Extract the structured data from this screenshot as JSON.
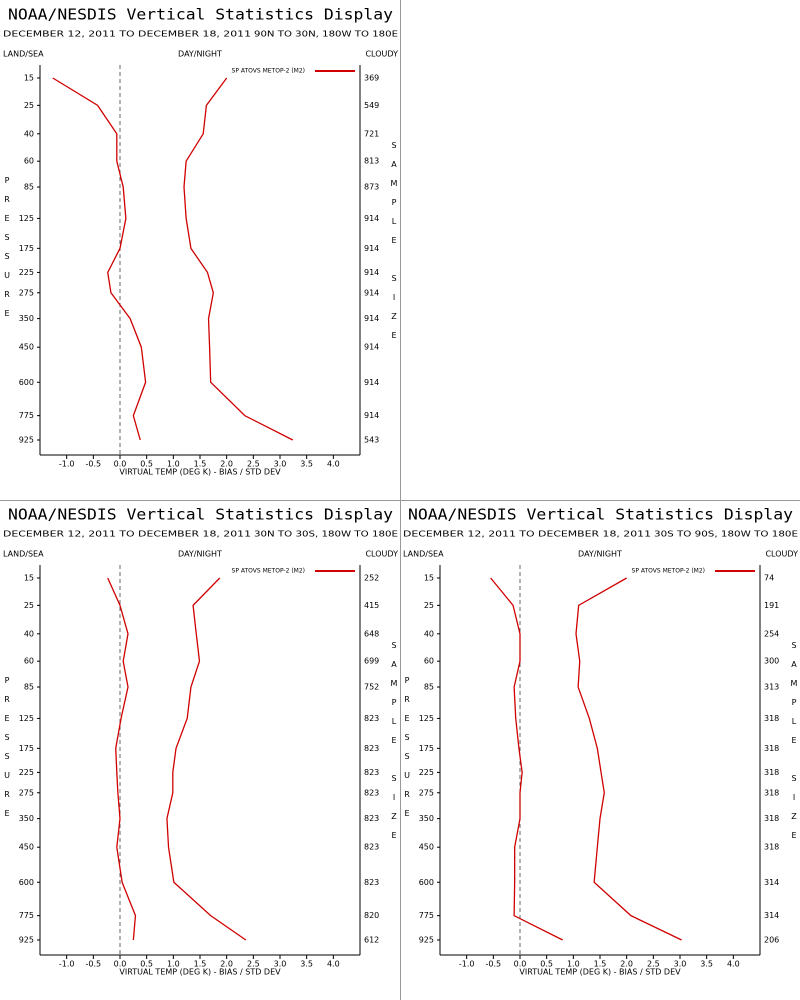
{
  "chart_data": [
    {
      "type": "line",
      "title": "NOAA/NESDIS Vertical Statistics Display",
      "date_range": "DECEMBER 12, 2011 TO DECEMBER 18, 2011",
      "region": "90N TO 30N, 180W TO 180E",
      "land_sea": "LAND/SEA",
      "day_night": "DAY/NIGHT",
      "cloudy": "CLOUDY",
      "ylabel": "PRESSURE",
      "y2label": "SAMPLE SIZE",
      "xlabel": "VIRTUAL TEMP (DEG K) - BIAS / STD DEV",
      "categories": [
        15,
        25,
        40,
        60,
        85,
        125,
        175,
        225,
        275,
        350,
        450,
        600,
        775,
        925
      ],
      "sample_sizes": [
        369,
        549,
        721,
        813,
        873,
        914,
        914,
        914,
        914,
        914,
        914,
        914,
        914,
        543
      ],
      "series": [
        {
          "name": "SP ATOVS METOP-2 (M2)",
          "color": "#d00000",
          "values": [
            -1.26,
            -0.42,
            -0.06,
            -0.06,
            0.06,
            0.11,
            0.0,
            -0.23,
            -0.17,
            0.19,
            0.4,
            0.48,
            0.25,
            0.38
          ]
        },
        {
          "color": "#d00000",
          "values": [
            2.0,
            1.62,
            1.56,
            1.24,
            1.2,
            1.24,
            1.33,
            1.64,
            1.75,
            1.66,
            1.68,
            1.7,
            2.34,
            3.24
          ]
        }
      ],
      "xlim": [
        -1.5,
        4.5
      ],
      "xticks": [
        {
          "value": -1,
          "label": "-1.0"
        },
        -0.5,
        {
          "value": 0,
          "label": "0.0"
        },
        0.5,
        {
          "value": 1,
          "label": "1.0"
        },
        1.5,
        {
          "value": 2,
          "label": "2.0"
        },
        2.5,
        {
          "value": 3,
          "label": "3.0"
        },
        3.5,
        {
          "value": 4,
          "label": "4.0"
        }
      ]
    },
    {
      "type": "line",
      "title": "NOAA/NESDIS Vertical Statistics Display",
      "date_range": "DECEMBER 12, 2011 TO DECEMBER 18, 2011",
      "region": "30N TO 30S, 180W TO 180E",
      "land_sea": "LAND/SEA",
      "day_night": "DAY/NIGHT",
      "cloudy": "CLOUDY",
      "ylabel": "PRESSURE",
      "y2label": "SAMPLE SIZE",
      "xlabel": "VIRTUAL TEMP (DEG K) - BIAS / STD DEV",
      "categories": [
        15,
        25,
        40,
        60,
        85,
        125,
        175,
        225,
        275,
        350,
        450,
        600,
        775,
        925
      ],
      "sample_sizes": [
        252,
        415,
        648,
        699,
        752,
        823,
        823,
        823,
        823,
        823,
        823,
        823,
        820,
        612
      ],
      "series": [
        {
          "name": "SP ATOVS METOP-2 (M2)",
          "color": "#d00000",
          "values": [
            -0.23,
            0.0,
            0.15,
            0.06,
            0.15,
            0.02,
            -0.08,
            -0.06,
            -0.04,
            0.0,
            -0.06,
            0.04,
            0.29,
            0.25
          ]
        },
        {
          "color": "#d00000",
          "values": [
            1.87,
            1.37,
            1.43,
            1.49,
            1.33,
            1.26,
            1.05,
            0.99,
            0.99,
            0.88,
            0.91,
            1.01,
            1.7,
            2.36
          ]
        }
      ],
      "xlim": [
        -1.5,
        4.5
      ],
      "xticks": [
        {
          "value": -1,
          "label": "-1.0"
        },
        -0.5,
        {
          "value": 0,
          "label": "0.0"
        },
        0.5,
        {
          "value": 1,
          "label": "1.0"
        },
        1.5,
        {
          "value": 2,
          "label": "2.0"
        },
        2.5,
        {
          "value": 3,
          "label": "3.0"
        },
        3.5,
        {
          "value": 4,
          "label": "4.0"
        }
      ]
    },
    {
      "type": "line",
      "title": "NOAA/NESDIS Vertical Statistics Display",
      "date_range": "DECEMBER 12, 2011 TO DECEMBER 18, 2011",
      "region": "30S TO 90S, 180W TO 180E",
      "land_sea": "LAND/SEA",
      "day_night": "DAY/NIGHT",
      "cloudy": "CLOUDY",
      "ylabel": "PRESSURE",
      "y2label": "SAMPLE SIZE",
      "xlabel": "VIRTUAL TEMP (DEG K) - BIAS / STD DEV",
      "categories": [
        15,
        25,
        40,
        60,
        85,
        125,
        175,
        225,
        275,
        350,
        450,
        600,
        775,
        925
      ],
      "sample_sizes": [
        74,
        191,
        254,
        300,
        313,
        318,
        318,
        318,
        318,
        318,
        318,
        314,
        314,
        206
      ],
      "series": [
        {
          "name": "SP ATOVS METOP-2 (M2)",
          "color": "#d00000",
          "values": [
            -0.55,
            -0.13,
            0.0,
            0.0,
            -0.11,
            -0.08,
            -0.02,
            0.04,
            0.0,
            0.0,
            -0.1,
            -0.1,
            -0.11,
            0.8
          ]
        },
        {
          "color": "#d00000",
          "values": [
            2.0,
            1.1,
            1.05,
            1.12,
            1.09,
            1.3,
            1.45,
            1.52,
            1.58,
            1.5,
            1.45,
            1.39,
            2.08,
            3.03
          ]
        }
      ],
      "xlim": [
        -1.5,
        4.5
      ],
      "xticks": [
        {
          "value": -1,
          "label": "-1.0"
        },
        -0.5,
        {
          "value": 0,
          "label": "0.0"
        },
        0.5,
        {
          "value": 1,
          "label": "1.0"
        },
        1.5,
        {
          "value": 2,
          "label": "2.0"
        },
        2.5,
        {
          "value": 3,
          "label": "3.0"
        },
        3.5,
        {
          "value": 4,
          "label": "4.0"
        }
      ]
    }
  ]
}
